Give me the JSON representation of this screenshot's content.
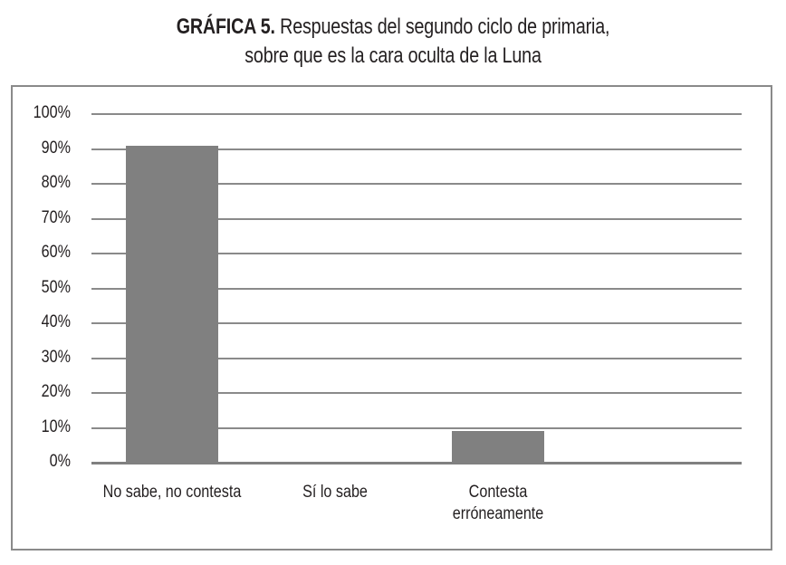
{
  "title": {
    "lead": "GRÁFICA 5.",
    "line1": " Respuestas del segundo ciclo de primaria,",
    "line2": "sobre que es la cara oculta de la Luna"
  },
  "colors": {
    "bar": "#808080",
    "grid": "#8a8a8a",
    "frame": "#8a8a8a",
    "text": "#231f20"
  },
  "y_ticks": [
    "100%",
    "90%",
    "80%",
    "70%",
    "60%",
    "50%",
    "40%",
    "30%",
    "20%",
    "10%",
    "0%"
  ],
  "categories": [
    {
      "line1": "No sabe, no contesta",
      "line2": ""
    },
    {
      "line1": "Sí lo sabe",
      "line2": ""
    },
    {
      "line1": "Contesta",
      "line2": "erróneamente"
    }
  ],
  "chart_data": {
    "type": "bar",
    "title": "GRÁFICA 5. Respuestas del segundo ciclo de primaria, sobre que es la cara oculta de la Luna",
    "categories": [
      "No sabe, no contesta",
      "Sí lo sabe",
      "Contesta erróneamente"
    ],
    "values": [
      91,
      0,
      9
    ],
    "unit": "%",
    "xlabel": "",
    "ylabel": "",
    "ylim": [
      0,
      100
    ],
    "yticks": [
      0,
      10,
      20,
      30,
      40,
      50,
      60,
      70,
      80,
      90,
      100
    ],
    "grid": true,
    "legend": "none"
  }
}
